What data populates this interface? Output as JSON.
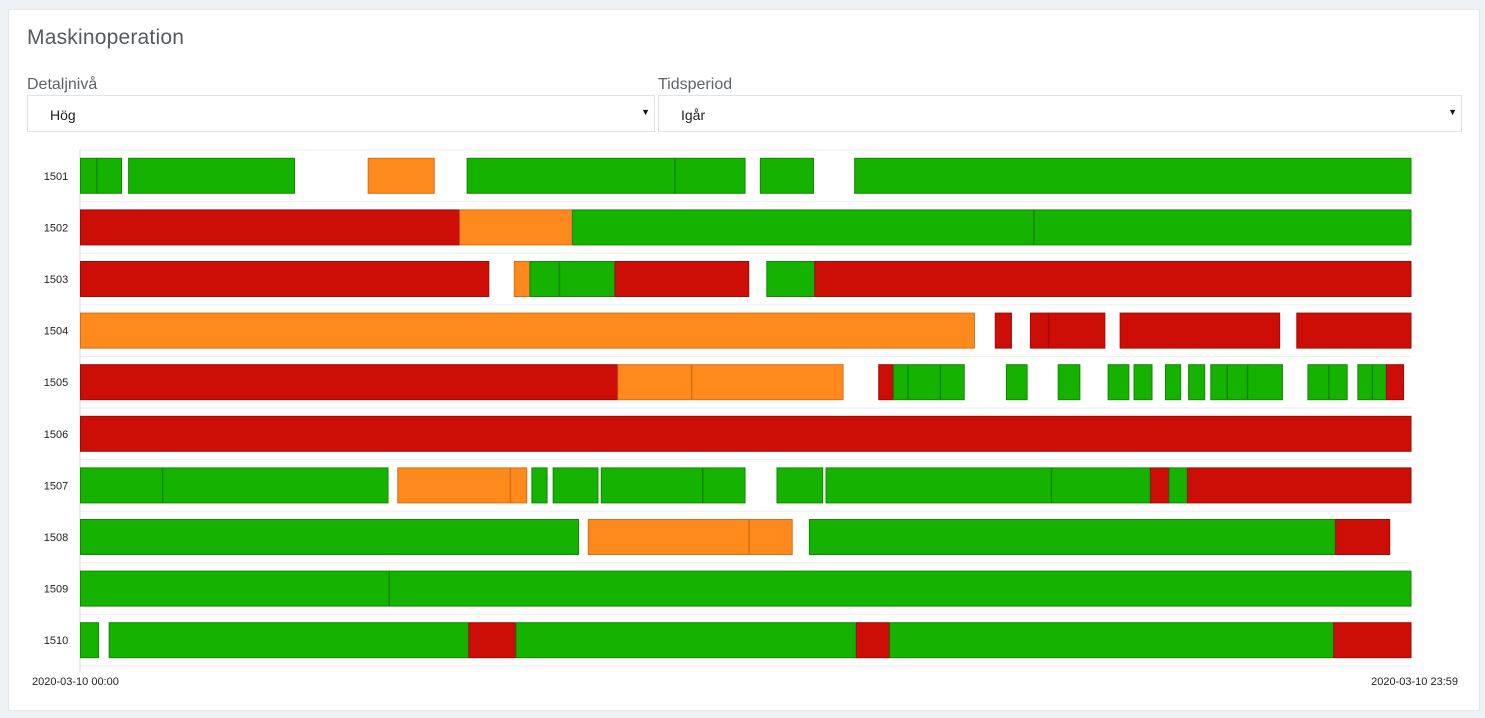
{
  "card": {
    "title": "Maskinoperation"
  },
  "filters": {
    "detail_label": "Detaljnivå",
    "detail_value": "Hög",
    "period_label": "Tidsperiod",
    "period_value": "Igår"
  },
  "colors": {
    "green": "#16b200",
    "orange": "#fe8a1e",
    "red": "#cd0e06",
    "grid": "#eceef1"
  },
  "chart_data": {
    "type": "timeline",
    "x_start_label": "2020-03-10 00:00",
    "x_end_label": "2020-03-10 23:59",
    "x_range_minutes": [
      0,
      1439
    ],
    "rows": [
      {
        "label": "1501",
        "segments": [
          [
            "green",
            0,
            18
          ],
          [
            "green",
            18,
            45
          ],
          [
            "green",
            52,
            232
          ],
          [
            "orange",
            311,
            383
          ],
          [
            "green",
            418,
            643
          ],
          [
            "green",
            643,
            719
          ],
          [
            "green",
            735,
            793
          ],
          [
            "green",
            837,
            1439
          ]
        ]
      },
      {
        "label": "1502",
        "segments": [
          [
            "red",
            0,
            410
          ],
          [
            "orange",
            410,
            532
          ],
          [
            "green",
            532,
            1031
          ],
          [
            "green",
            1031,
            1439
          ]
        ]
      },
      {
        "label": "1503",
        "segments": [
          [
            "red",
            0,
            442
          ],
          [
            "orange",
            469,
            486
          ],
          [
            "green",
            486,
            518
          ],
          [
            "green",
            518,
            578
          ],
          [
            "red",
            578,
            723
          ],
          [
            "green",
            742,
            794
          ],
          [
            "red",
            794,
            1439
          ]
        ]
      },
      {
        "label": "1504",
        "segments": [
          [
            "orange",
            0,
            967
          ],
          [
            "red",
            989,
            1007
          ],
          [
            "red",
            1027,
            1047
          ],
          [
            "red",
            1047,
            1108
          ],
          [
            "red",
            1124,
            1297
          ],
          [
            "red",
            1315,
            1439
          ]
        ]
      },
      {
        "label": "1505",
        "segments": [
          [
            "red",
            0,
            581
          ],
          [
            "orange",
            581,
            661
          ],
          [
            "orange",
            661,
            825
          ],
          [
            "red",
            863,
            879
          ],
          [
            "green",
            879,
            895
          ],
          [
            "green",
            895,
            930
          ],
          [
            "green",
            930,
            956
          ],
          [
            "green",
            1001,
            1024
          ],
          [
            "green",
            1057,
            1081
          ],
          [
            "green",
            1111,
            1134
          ],
          [
            "green",
            1139,
            1159
          ],
          [
            "green",
            1173,
            1190
          ],
          [
            "green",
            1198,
            1216
          ],
          [
            "green",
            1222,
            1240
          ],
          [
            "green",
            1240,
            1262
          ],
          [
            "green",
            1262,
            1300
          ],
          [
            "green",
            1327,
            1350
          ],
          [
            "green",
            1350,
            1370
          ],
          [
            "green",
            1381,
            1397
          ],
          [
            "green",
            1397,
            1412
          ],
          [
            "red",
            1412,
            1431
          ]
        ]
      },
      {
        "label": "1506",
        "segments": [
          [
            "red",
            0,
            1439
          ]
        ]
      },
      {
        "label": "1507",
        "segments": [
          [
            "green",
            0,
            89
          ],
          [
            "green",
            89,
            333
          ],
          [
            "orange",
            343,
            465
          ],
          [
            "orange",
            465,
            483
          ],
          [
            "green",
            488,
            505
          ],
          [
            "green",
            511,
            560
          ],
          [
            "green",
            563,
            673
          ],
          [
            "green",
            673,
            719
          ],
          [
            "green",
            753,
            803
          ],
          [
            "green",
            806,
            1050
          ],
          [
            "green",
            1050,
            1157
          ],
          [
            "red",
            1157,
            1177
          ],
          [
            "green",
            1177,
            1197
          ],
          [
            "red",
            1197,
            1439
          ]
        ]
      },
      {
        "label": "1508",
        "segments": [
          [
            "green",
            0,
            539
          ],
          [
            "orange",
            549,
            723
          ],
          [
            "orange",
            723,
            770
          ],
          [
            "green",
            788,
            1357
          ],
          [
            "red",
            1357,
            1416
          ]
        ]
      },
      {
        "label": "1509",
        "segments": [
          [
            "green",
            0,
            334
          ],
          [
            "green",
            334,
            1439
          ]
        ]
      },
      {
        "label": "1510",
        "segments": [
          [
            "green",
            0,
            20
          ],
          [
            "green",
            31,
            420
          ],
          [
            "red",
            420,
            471
          ],
          [
            "green",
            471,
            839
          ],
          [
            "red",
            839,
            875
          ],
          [
            "green",
            875,
            1355
          ],
          [
            "red",
            1355,
            1439
          ]
        ]
      }
    ]
  }
}
